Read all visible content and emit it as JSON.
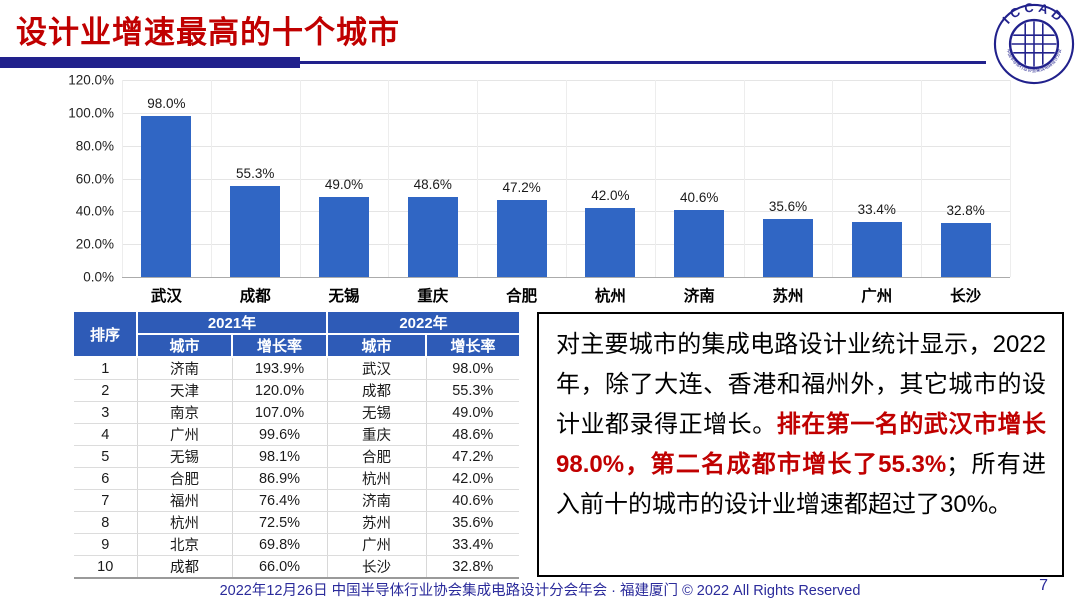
{
  "title": "设计业增速最高的十个城市",
  "logo": {
    "text": "ICCAD",
    "ring_text": "中国半导体行业协会集成电路设计分会"
  },
  "chart_data": {
    "type": "bar",
    "categories": [
      "武汉",
      "成都",
      "无锡",
      "重庆",
      "合肥",
      "杭州",
      "济南",
      "苏州",
      "广州",
      "长沙"
    ],
    "values": [
      98.0,
      55.3,
      49.0,
      48.6,
      47.2,
      42.0,
      40.6,
      35.6,
      33.4,
      32.8
    ],
    "value_labels": [
      "98.0%",
      "55.3%",
      "49.0%",
      "48.6%",
      "47.2%",
      "42.0%",
      "40.6%",
      "35.6%",
      "33.4%",
      "32.8%"
    ],
    "title": "",
    "xlabel": "",
    "ylabel": "",
    "ylim": [
      0,
      120
    ],
    "yticks": [
      "120.0%",
      "100.0%",
      "80.0%",
      "60.0%",
      "40.0%",
      "20.0%",
      "0.0%"
    ],
    "grid": true,
    "legend": false,
    "bar_color": "#3066C4"
  },
  "table": {
    "headers": {
      "rank": "排序",
      "year2021": "2021年",
      "year2022": "2022年",
      "city": "城市",
      "growth": "增长率"
    },
    "rows": [
      [
        "1",
        "济南",
        "193.9%",
        "武汉",
        "98.0%"
      ],
      [
        "2",
        "天津",
        "120.0%",
        "成都",
        "55.3%"
      ],
      [
        "3",
        "南京",
        "107.0%",
        "无锡",
        "49.0%"
      ],
      [
        "4",
        "广州",
        "99.6%",
        "重庆",
        "48.6%"
      ],
      [
        "5",
        "无锡",
        "98.1%",
        "合肥",
        "47.2%"
      ],
      [
        "6",
        "合肥",
        "86.9%",
        "杭州",
        "42.0%"
      ],
      [
        "7",
        "福州",
        "76.4%",
        "济南",
        "40.6%"
      ],
      [
        "8",
        "杭州",
        "72.5%",
        "苏州",
        "35.6%"
      ],
      [
        "9",
        "北京",
        "69.8%",
        "广州",
        "33.4%"
      ],
      [
        "10",
        "成都",
        "66.0%",
        "长沙",
        "32.8%"
      ]
    ]
  },
  "note": {
    "part1": "对主要城市的集成电路设计业统计显示，2022年，除了大连、香港和福州外，其它城市的设计业都录得正增长。",
    "highlight": "排在第一名的武汉市增长98.0%，第二名成都市增长了55.3%",
    "part2": "；所有进入前十的城市的设计业增速都超过了30%。"
  },
  "footer": {
    "text": "2022年12月26日 中国半导体行业协会集成电路设计分会年会 · 福建厦门 © 2022 All Rights Reserved",
    "page": "7"
  },
  "colors": {
    "bar": "#3066C4",
    "table_header": "#2E5BB7",
    "accent_red": "#C00000",
    "navy_rule": "#21218C",
    "footer_text": "#2B2B9B"
  }
}
